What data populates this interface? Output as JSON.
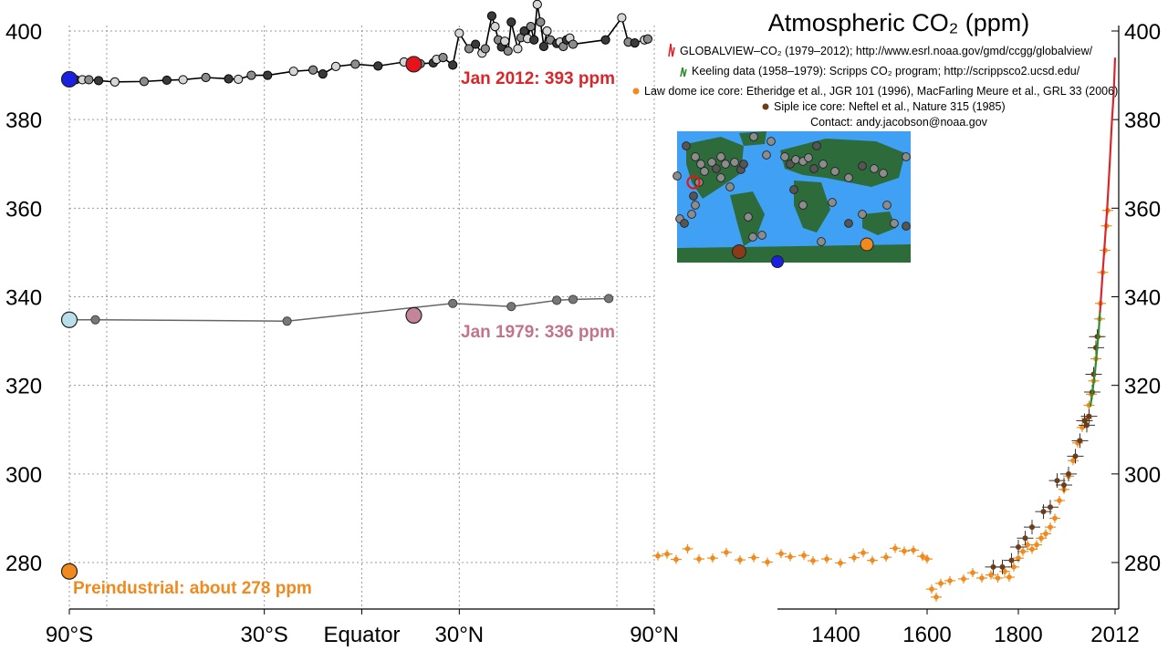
{
  "chart_data": [
    {
      "type": "scatter",
      "panel": "latitude",
      "x_tick_labels": [
        "90°S",
        "30°S",
        "Equator",
        "30°N",
        "90°N"
      ],
      "x_ticks": [
        -90,
        -30,
        0,
        30,
        90
      ],
      "xlim": [
        -90,
        90
      ],
      "ylim": [
        272,
        405
      ],
      "y_ticks": [
        280,
        300,
        320,
        340,
        360,
        380,
        400
      ],
      "grid": true,
      "series": [
        {
          "color": "#000000",
          "values": [
            [
              -88,
              389
            ],
            [
              -86,
              389
            ],
            [
              -84,
              389
            ],
            [
              -81,
              388.8
            ],
            [
              -76,
              388.5
            ],
            [
              -67,
              388.6
            ],
            [
              -60,
              388.9
            ],
            [
              -55,
              389
            ],
            [
              -48,
              389.5
            ],
            [
              -41,
              389.2
            ],
            [
              -38,
              389.1
            ],
            [
              -34,
              390
            ],
            [
              -29,
              390
            ],
            [
              -21,
              390.9
            ],
            [
              -15,
              391.2
            ],
            [
              -12,
              390.3
            ],
            [
              -8,
              392
            ],
            [
              -2,
              392.5
            ],
            [
              5,
              392.1
            ],
            [
              13,
              393
            ],
            [
              18,
              392.6
            ],
            [
              22,
              392.8
            ],
            [
              23,
              393.6
            ],
            [
              25,
              394
            ],
            [
              28,
              392.3
            ],
            [
              30,
              399.5
            ],
            [
              33,
              396
            ],
            [
              35,
              397
            ],
            [
              37,
              395
            ],
            [
              38,
              396
            ],
            [
              40,
              403.4
            ],
            [
              41,
              401
            ],
            [
              42,
              398
            ],
            [
              43,
              396.4
            ],
            [
              44,
              397.7
            ],
            [
              45,
              395.5
            ],
            [
              46,
              402
            ],
            [
              48,
              396
            ],
            [
              49,
              398.5
            ],
            [
              50,
              400
            ],
            [
              51,
              398.3
            ],
            [
              52,
              401
            ],
            [
              53,
              398
            ],
            [
              54,
              406
            ],
            [
              55,
              402
            ],
            [
              56,
              396.5
            ],
            [
              57,
              400
            ],
            [
              58,
              398
            ],
            [
              60,
              397.2
            ],
            [
              61,
              397.5
            ],
            [
              62,
              396.5
            ],
            [
              63,
              398
            ],
            [
              64,
              398.4
            ],
            [
              65,
              397
            ],
            [
              75,
              398
            ],
            [
              80,
              403
            ],
            [
              82,
              397.5
            ],
            [
              84,
              397.3
            ],
            [
              87,
              398
            ],
            [
              88,
              398.2
            ]
          ]
        },
        {
          "color": "#555555",
          "values": [
            [
              -82,
              334.8
            ],
            [
              -23,
              334.5
            ],
            [
              28,
              338.5
            ],
            [
              46,
              337.8
            ],
            [
              60,
              339.2
            ],
            [
              65,
              339.4
            ],
            [
              76,
              339.6
            ]
          ]
        }
      ],
      "annotations": [
        {
          "text": "Jan 2012: 393 ppm",
          "x": 16,
          "y": 392.5,
          "color": "#d8262b"
        },
        {
          "text": "Jan 1979: 336 ppm",
          "x": 16,
          "y": 335.8,
          "color": "#c1748c"
        },
        {
          "text": "Preindustrial: about 278 ppm",
          "x": -90,
          "y": 278,
          "color": "#f08a1e"
        }
      ],
      "endpoint_markers": [
        {
          "x": -90,
          "y": 389.1,
          "color": "#1a22e0"
        },
        {
          "x": 16,
          "y": 392.5,
          "color": "#e5141c"
        },
        {
          "x": -90,
          "y": 334.8,
          "color": "#b9dfeb"
        },
        {
          "x": 16,
          "y": 335.8,
          "color": "#c48598"
        },
        {
          "x": -90,
          "y": 278,
          "color": "#f08a1e"
        }
      ]
    },
    {
      "type": "scatter",
      "panel": "time",
      "title": "Atmospheric CO₂ (ppm)",
      "x_tick_labels": [
        "1400",
        "1600",
        "1800",
        "2012"
      ],
      "x_ticks": [
        1400,
        1600,
        1800,
        2012
      ],
      "xlim": [
        1000,
        2012
      ],
      "ylim": [
        272,
        405
      ],
      "y_ticks": [
        280,
        300,
        320,
        340,
        360,
        380,
        400
      ],
      "grid": false,
      "legend_placement": "top-right",
      "legend": [
        {
          "text": "GLOBALVIEW–CO₂ (1979–2012); http://www.esrl.noaa.gov/gmd/ccgg/globalview/",
          "color": "#d8262b"
        },
        {
          "text": "Keeling data (1958–1979): Scripps CO₂ program; http://scrippsco2.ucsd.edu/",
          "color": "#2e8b2e"
        },
        {
          "text": "Law dome ice core: Etheridge et al., JGR 101 (1996), MacFarling Meure et al., GRL 33 (2006)",
          "color": "#f08a1e"
        },
        {
          "text": "Siple ice core: Neftel et al., Nature 315 (1985)",
          "color": "#6b3d1a"
        },
        {
          "text": "Contact: andy.jacobson@noaa.gov",
          "color": ""
        }
      ],
      "series": [
        {
          "color": "#f08a1e",
          "values": [
            [
              1010,
              281.5
            ],
            [
              1030,
              281.9
            ],
            [
              1050,
              280.7
            ],
            [
              1075,
              283.1
            ],
            [
              1100,
              280.8
            ],
            [
              1130,
              281.0
            ],
            [
              1160,
              282.3
            ],
            [
              1190,
              280.6
            ],
            [
              1220,
              281.1
            ],
            [
              1250,
              280.1
            ],
            [
              1280,
              282.0
            ],
            [
              1300,
              281.3
            ],
            [
              1330,
              281.6
            ],
            [
              1350,
              280.4
            ],
            [
              1380,
              280.8
            ],
            [
              1410,
              279.9
            ],
            [
              1440,
              281.1
            ],
            [
              1460,
              282.2
            ],
            [
              1480,
              280.5
            ],
            [
              1510,
              281.2
            ],
            [
              1530,
              283.2
            ],
            [
              1550,
              282.6
            ],
            [
              1570,
              282.8
            ],
            [
              1590,
              281.4
            ],
            [
              1600,
              280.8
            ],
            [
              1610,
              274.0
            ],
            [
              1620,
              272.2
            ],
            [
              1630,
              275.3
            ],
            [
              1650,
              275.9
            ],
            [
              1680,
              276.3
            ],
            [
              1700,
              277.7
            ],
            [
              1720,
              276.5
            ],
            [
              1740,
              277.2
            ],
            [
              1755,
              276.5
            ],
            [
              1770,
              278.0
            ],
            [
              1780,
              276.7
            ],
            [
              1790,
              279.0
            ],
            [
              1800,
              281.0
            ],
            [
              1810,
              282.5
            ],
            [
              1820,
              284.0
            ],
            [
              1830,
              283.0
            ],
            [
              1840,
              284.0
            ],
            [
              1850,
              285.5
            ],
            [
              1860,
              286.5
            ],
            [
              1870,
              288.0
            ],
            [
              1880,
              290.0
            ],
            [
              1890,
              294.0
            ],
            [
              1900,
              296.5
            ],
            [
              1910,
              299.5
            ],
            [
              1920,
              303.0
            ],
            [
              1930,
              307.0
            ],
            [
              1940,
              310.5
            ],
            [
              1950,
              312.5
            ],
            [
              1955,
              315.5
            ],
            [
              1960,
              318.0
            ],
            [
              1965,
              321.0
            ],
            [
              1970,
              326.0
            ],
            [
              1975,
              331.0
            ],
            [
              1978,
              335.0
            ],
            [
              1980,
              338.5
            ],
            [
              1985,
              345.5
            ],
            [
              1990,
              350.5
            ],
            [
              1993,
              356.0
            ],
            [
              1996,
              359.5
            ]
          ]
        },
        {
          "color": "#6b3d1a",
          "values": [
            [
              1745,
              279.0
            ],
            [
              1765,
              279.0
            ],
            [
              1785,
              280.5
            ],
            [
              1800,
              283.5
            ],
            [
              1815,
              285.5
            ],
            [
              1830,
              288.0
            ],
            [
              1855,
              291.5
            ],
            [
              1870,
              292.5
            ],
            [
              1885,
              298.5
            ],
            [
              1900,
              297.5
            ],
            [
              1910,
              300.0
            ],
            [
              1925,
              304.0
            ],
            [
              1935,
              307.5
            ],
            [
              1945,
              312.0
            ],
            [
              1950,
              311.0
            ],
            [
              1955,
              313.0
            ],
            [
              1962,
              318.5
            ],
            [
              1965,
              322.5
            ],
            [
              1970,
              328.5
            ],
            [
              1973,
              331.0
            ]
          ]
        },
        {
          "color": "#2e8b2e",
          "line": true,
          "values": [
            [
              1958,
              315.3
            ],
            [
              1963,
              319.0
            ],
            [
              1968,
              323.0
            ],
            [
              1972,
              327.5
            ],
            [
              1976,
              332.0
            ],
            [
              1979,
              336.8
            ]
          ]
        },
        {
          "color": "#d8262b",
          "line": true,
          "values": [
            [
              1979,
              336.5
            ],
            [
              1985,
              345.7
            ],
            [
              1990,
              353.0
            ],
            [
              1995,
              360.5
            ],
            [
              2000,
              369.5
            ],
            [
              2005,
              379.5
            ],
            [
              2009,
              386.0
            ],
            [
              2012,
              394.0
            ]
          ]
        }
      ]
    }
  ],
  "map_inset": {
    "colors": {
      "ocean": "#3fa0f4",
      "land": "#2e6b3a",
      "site": "#8c8c8c",
      "site_dark": "#555555"
    },
    "highlight_sites": [
      {
        "color": "#e5141c"
      },
      {
        "color": "#1a22e0"
      },
      {
        "color": "#8b3a1a"
      },
      {
        "color": "#f08a1e"
      }
    ]
  }
}
